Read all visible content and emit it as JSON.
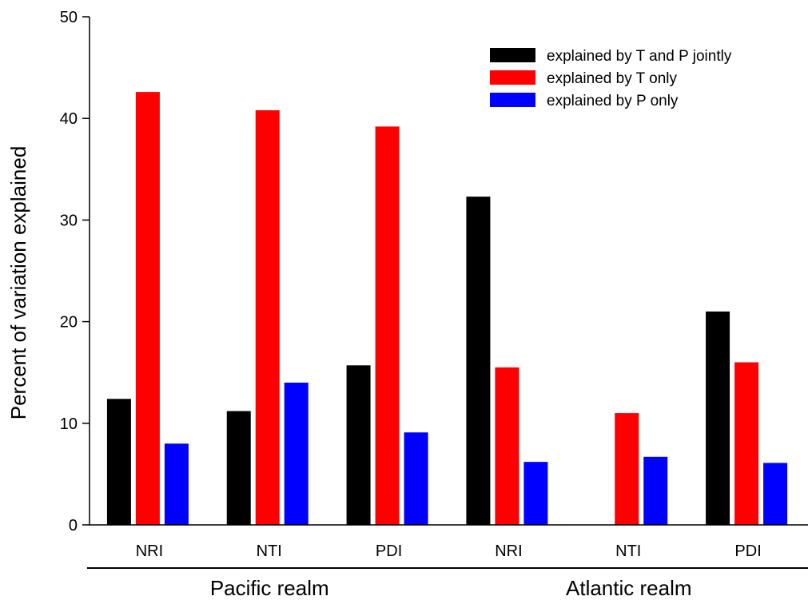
{
  "chart_data": {
    "type": "bar",
    "ylabel": "Percent of variation explained",
    "ylim": [
      0,
      50
    ],
    "yticks": [
      0,
      10,
      20,
      30,
      40,
      50
    ],
    "categories": [
      "NRI",
      "NTI",
      "PDI",
      "NRI",
      "NTI",
      "PDI"
    ],
    "groups": [
      {
        "label": "Pacific realm",
        "category_indices": [
          0,
          1,
          2
        ]
      },
      {
        "label": "Atlantic realm",
        "category_indices": [
          3,
          4,
          5
        ]
      }
    ],
    "series": [
      {
        "name": "explained by T and P jointly",
        "color": "#000000",
        "values": [
          12.4,
          11.2,
          15.7,
          32.3,
          0,
          21.0
        ]
      },
      {
        "name": "explained by T only",
        "color": "#ff0000",
        "values": [
          42.6,
          40.8,
          39.2,
          15.5,
          11.0,
          16.0
        ]
      },
      {
        "name": "explained by P only",
        "color": "#0000ff",
        "values": [
          8.0,
          14.0,
          9.1,
          6.2,
          6.7,
          6.1
        ]
      }
    ],
    "legend_position": "top-right",
    "grid": false
  }
}
